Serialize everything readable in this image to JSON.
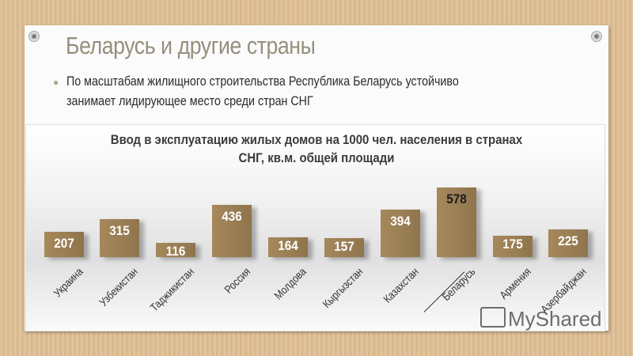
{
  "slide": {
    "title": "Беларусь и другие страны",
    "bullet_line1": "По масштабам жилищного строительства Республика Беларусь устойчиво",
    "bullet_line2": "занимает лидирующее место среди стран СНГ",
    "watermark": "MyShared"
  },
  "chart_data": {
    "type": "bar",
    "title": "Ввод в эксплуатацию жилых домов на 1000 чел. населения в странах СНГ, кв.м. общей площади",
    "title_line1": "Ввод в эксплуатацию жилых домов на 1000 чел. населения в странах",
    "title_line2": "СНГ, кв.м. общей площади",
    "categories": [
      "Украина",
      "Узбекистан",
      "Таджикистан",
      "Россия",
      "Молдова",
      "Кыргызстан",
      "Казахстан",
      "Беларусь",
      "Армения",
      "Азербайджан"
    ],
    "values": [
      207,
      315,
      116,
      436,
      164,
      157,
      394,
      578,
      175,
      225
    ],
    "value_labels": [
      "207",
      "315",
      "116",
      "436",
      "164",
      "157",
      "394",
      "578",
      "175",
      "225"
    ],
    "highlighted": "Беларусь",
    "xlabel": "",
    "ylabel": "",
    "grid": false,
    "legend": "none",
    "bar_color": "#9b7f55"
  }
}
